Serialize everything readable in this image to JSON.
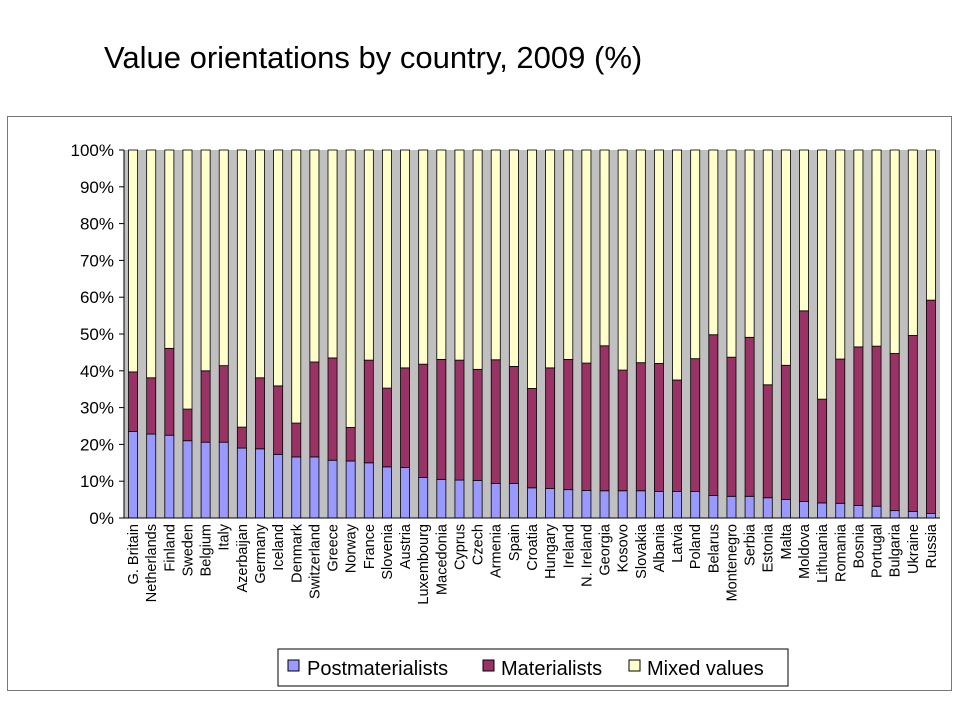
{
  "title": "Value orientations by country, 2009 (%)",
  "chart_data": {
    "type": "bar",
    "stacked": true,
    "percent_stacked": true,
    "ylim": [
      0,
      100
    ],
    "y_ticks": [
      "0%",
      "10%",
      "20%",
      "30%",
      "40%",
      "50%",
      "60%",
      "70%",
      "80%",
      "90%",
      "100%"
    ],
    "grid": false,
    "legend_position": "bottom",
    "categories": [
      "G. Britain",
      "Netherlands",
      "Finland",
      "Sweden",
      "Belgium",
      "Italy",
      "Azerbaijan",
      "Germany",
      "Iceland",
      "Denmark",
      "Switzerland",
      "Greece",
      "Norway",
      "France",
      "Slovenia",
      "Austria",
      "Luxembourg",
      "Macedonia",
      "Cyprus",
      "Czech",
      "Armenia",
      "Spain",
      "Croatia",
      "Hungary",
      "Ireland",
      "N. Ireland",
      "Georgia",
      "Kosovo",
      "Slovakia",
      "Albania",
      "Latvia",
      "Poland",
      "Belarus",
      "Montenegro",
      "Serbia",
      "Estonia",
      "Malta",
      "Moldova",
      "Lithuania",
      "Romania",
      "Bosnia",
      "Portugal",
      "Bulgaria",
      "Ukraine",
      "Russia"
    ],
    "series": [
      {
        "name": "Postmaterialists",
        "color": "#9999ff",
        "values": [
          23.5,
          22.8,
          22.5,
          21.0,
          20.6,
          20.6,
          19.0,
          18.8,
          17.3,
          16.6,
          16.6,
          15.7,
          15.5,
          15.0,
          13.9,
          13.7,
          11.0,
          10.5,
          10.3,
          10.2,
          9.4,
          9.4,
          8.2,
          8.0,
          7.7,
          7.5,
          7.4,
          7.4,
          7.4,
          7.2,
          7.2,
          7.2,
          6.1,
          5.9,
          5.9,
          5.5,
          5.0,
          4.5,
          4.1,
          4.0,
          3.4,
          3.2,
          2.0,
          1.8,
          1.2
        ]
      },
      {
        "name": "Materialists",
        "color": "#993366",
        "values": [
          16.2,
          15.3,
          23.6,
          8.6,
          19.4,
          20.8,
          5.7,
          19.3,
          18.6,
          9.2,
          25.8,
          27.8,
          9.1,
          27.9,
          21.4,
          27.1,
          30.8,
          32.6,
          32.6,
          30.2,
          33.6,
          31.8,
          27.0,
          32.8,
          35.4,
          34.6,
          39.4,
          32.8,
          34.8,
          34.8,
          30.3,
          36.1,
          43.7,
          37.8,
          43.2,
          30.7,
          36.5,
          51.8,
          28.2,
          39.2,
          43.1,
          43.5,
          42.7,
          47.8,
          58.0
        ]
      },
      {
        "name": "Mixed values",
        "color": "#ffffcc",
        "values": [
          60.3,
          61.9,
          53.9,
          70.4,
          60.0,
          58.6,
          75.3,
          61.9,
          64.1,
          74.2,
          57.6,
          56.5,
          75.4,
          57.1,
          64.7,
          59.2,
          58.2,
          56.9,
          57.1,
          59.6,
          57.0,
          58.8,
          64.8,
          59.2,
          56.9,
          57.9,
          53.2,
          59.8,
          57.8,
          58.0,
          62.5,
          56.7,
          50.2,
          56.3,
          50.9,
          63.8,
          58.5,
          43.7,
          67.7,
          56.8,
          53.5,
          53.3,
          55.3,
          50.4,
          40.8
        ]
      }
    ]
  }
}
